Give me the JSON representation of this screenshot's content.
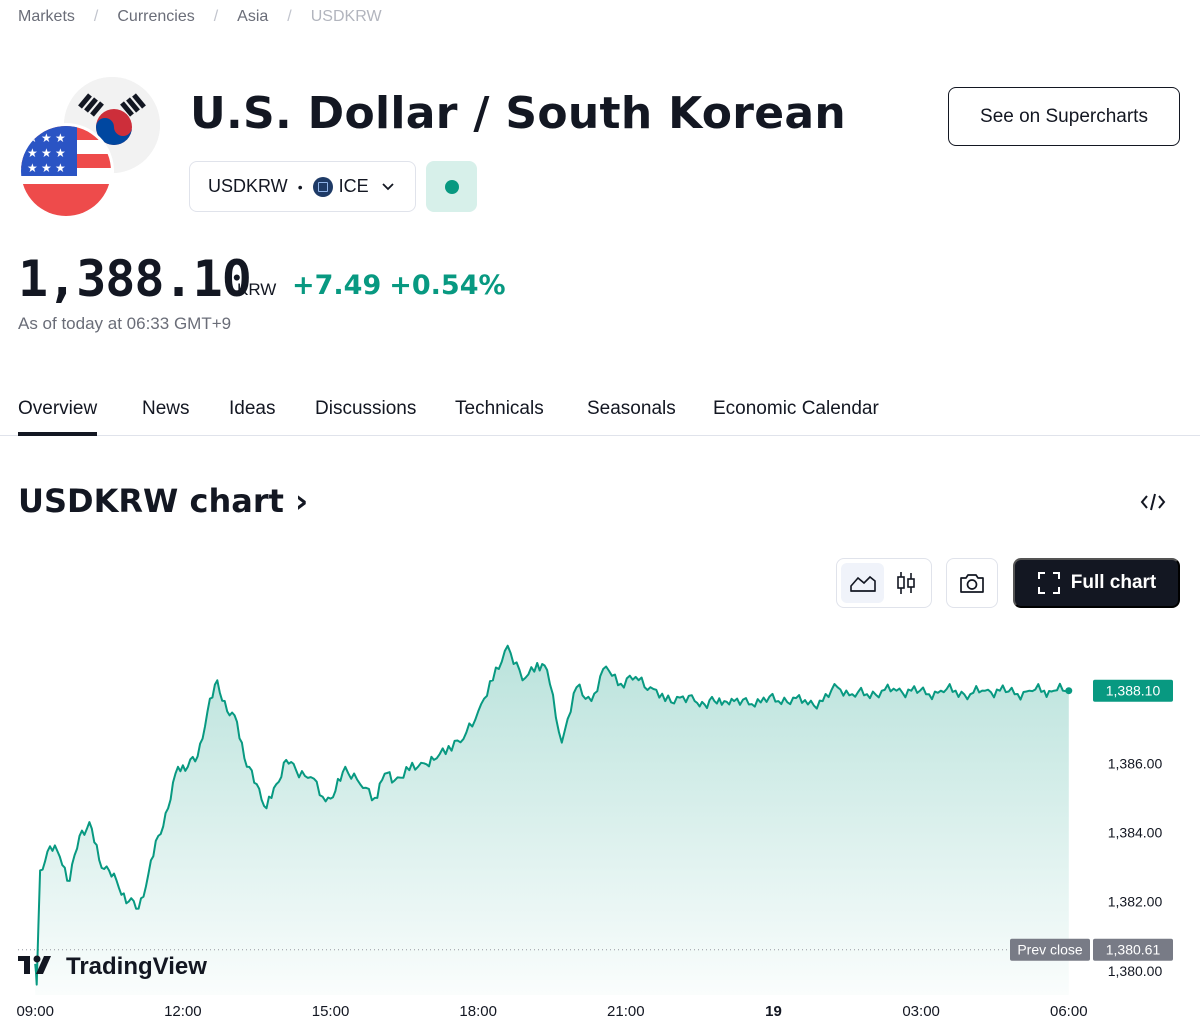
{
  "breadcrumb": [
    "Markets",
    "Currencies",
    "Asia",
    "USDKRW"
  ],
  "header": {
    "title": "U.S. Dollar / South Korean",
    "symbol": "USDKRW",
    "exchange": "ICE",
    "supercharts_label": "See on Supercharts",
    "market_status_color": "#089981"
  },
  "quote": {
    "price": "1,388.10",
    "currency": "KRW",
    "change": "+7.49",
    "change_percent": "+0.54%",
    "as_of": "As of today at 06:33 GMT+9",
    "positive_color": "#089981"
  },
  "tabs": [
    "Overview",
    "News",
    "Ideas",
    "Discussions",
    "Technicals",
    "Seasonals",
    "Economic Calendar"
  ],
  "active_tab": "Overview",
  "chart_section": {
    "title": "USDKRW chart",
    "full_chart_label": "Full chart",
    "brand": "TradingView"
  },
  "chart_data": {
    "type": "area",
    "series": [
      {
        "name": "USDKRW",
        "x": [
          0,
          0.03,
          0.1,
          0.3,
          0.5,
          0.7,
          0.9,
          1.1,
          1.3,
          1.5,
          1.7,
          1.9,
          2.1,
          2.3,
          2.5,
          2.7,
          2.9,
          3.1,
          3.3,
          3.5,
          3.7,
          3.9,
          4.1,
          4.3,
          4.5,
          4.7,
          4.9,
          5.1,
          5.3,
          5.6,
          5.9,
          6.1,
          6.3,
          6.6,
          6.9,
          7.1,
          7.3,
          7.6,
          7.9,
          8.1,
          8.4,
          8.7,
          9.0,
          9.3,
          9.6,
          9.9,
          10.2,
          10.4,
          10.7,
          11.0,
          11.3,
          11.6,
          11.9,
          12.2,
          12.5,
          12.8,
          13.1,
          13.4,
          13.6,
          13.8,
          14.0,
          14.1,
          14.2,
          14.5,
          14.8,
          15.1,
          15.4,
          15.7,
          16.0,
          16.3,
          16.6,
          16.9,
          17.2,
          17.5,
          17.8,
          18.1,
          18.4,
          18.7,
          19.0,
          19.3,
          19.6,
          19.9,
          20.2,
          20.5,
          20.7,
          21.0
        ],
        "values": [
          1380.2,
          1379.6,
          1382.9,
          1383.6,
          1383.3,
          1382.6,
          1383.9,
          1384.3,
          1383.2,
          1382.9,
          1382.4,
          1382.0,
          1381.8,
          1382.8,
          1383.9,
          1384.7,
          1385.9,
          1385.9,
          1386.2,
          1387.5,
          1388.4,
          1387.5,
          1387.2,
          1385.9,
          1385.4,
          1384.7,
          1385.4,
          1386.1,
          1385.8,
          1385.6,
          1384.9,
          1385.2,
          1385.9,
          1385.4,
          1385.0,
          1385.7,
          1385.5,
          1385.8,
          1386.0,
          1386.1,
          1386.5,
          1386.7,
          1387.5,
          1388.4,
          1389.4,
          1388.4,
          1388.9,
          1388.7,
          1386.6,
          1388.2,
          1387.8,
          1388.8,
          1388.3,
          1388.5,
          1388.2,
          1387.8,
          1387.9,
          1387.8,
          1387.7,
          1387.8,
          1387.8,
          1387.7,
          1387.8,
          1387.7,
          1387.9,
          1387.8,
          1387.9,
          1387.7,
          1387.8,
          1388.2,
          1388.0,
          1388.0,
          1388.1,
          1388.1,
          1388.1,
          1388.0,
          1388.1,
          1388.1,
          1388.0,
          1388.1,
          1388.1,
          1388.0,
          1388.1,
          1388.1,
          1388.1,
          1388.1
        ]
      }
    ],
    "xlabel": "",
    "ylabel": "",
    "x_ticks": [
      {
        "pos": 0,
        "label": "09:00"
      },
      {
        "pos": 3,
        "label": "12:00"
      },
      {
        "pos": 6,
        "label": "15:00"
      },
      {
        "pos": 9,
        "label": "18:00"
      },
      {
        "pos": 12,
        "label": "21:00"
      },
      {
        "pos": 15,
        "label": "19"
      },
      {
        "pos": 18,
        "label": "03:00"
      },
      {
        "pos": 21,
        "label": "06:00"
      }
    ],
    "y_ticks": [
      "1,380.00",
      "1,382.00",
      "1,384.00",
      "1,386.00"
    ],
    "y_tick_values": [
      1380,
      1382,
      1384,
      1386
    ],
    "ylim": [
      1379.3,
      1390.0
    ],
    "xlim": [
      -0.35,
      21.35
    ],
    "last_price": 1388.1,
    "last_price_label": "1,388.10",
    "prev_close": 1380.61,
    "prev_close_label": "1,380.61",
    "prev_close_text": "Prev close",
    "line_color": "#089981"
  }
}
